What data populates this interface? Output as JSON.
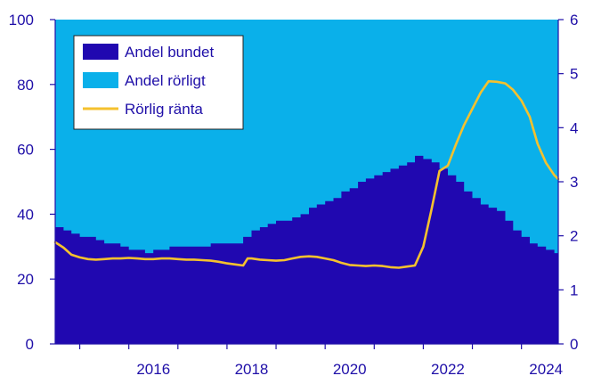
{
  "chart_data": {
    "type": "area",
    "title": "",
    "xlabel": "",
    "ylabel": "",
    "y2label": "",
    "xlim": [
      2014.5,
      2024.75
    ],
    "ylim": [
      0,
      100
    ],
    "y2lim": [
      0,
      6
    ],
    "x_ticks": [
      2016,
      2018,
      2020,
      2022,
      2024
    ],
    "y_ticks": [
      0,
      20,
      40,
      60,
      80,
      100
    ],
    "y2_ticks": [
      0,
      1,
      2,
      3,
      4,
      5,
      6
    ],
    "grid": false,
    "legend_position": "top-left",
    "colors": {
      "fixed": "#2008b0",
      "variable": "#0ab0ea",
      "rate": "#f5c12e",
      "axis": "#1f0fa8"
    },
    "legend": [
      {
        "label": "Andel bundet",
        "series": "fixed"
      },
      {
        "label": "Andel rörligt",
        "series": "variable"
      },
      {
        "label": "Rörlig ränta",
        "series": "rate"
      }
    ],
    "series": [
      {
        "key": "fixed",
        "name": "Andel bundet",
        "axis": "left",
        "points": [
          [
            2014.5,
            36
          ],
          [
            2014.67,
            35
          ],
          [
            2014.83,
            34
          ],
          [
            2015.0,
            33
          ],
          [
            2015.17,
            33
          ],
          [
            2015.33,
            32
          ],
          [
            2015.5,
            31
          ],
          [
            2015.67,
            31
          ],
          [
            2015.83,
            30
          ],
          [
            2016.0,
            29
          ],
          [
            2016.17,
            29
          ],
          [
            2016.33,
            28
          ],
          [
            2016.5,
            29
          ],
          [
            2016.67,
            29
          ],
          [
            2016.83,
            30
          ],
          [
            2017.0,
            30
          ],
          [
            2017.17,
            30
          ],
          [
            2017.33,
            30
          ],
          [
            2017.5,
            30
          ],
          [
            2017.67,
            31
          ],
          [
            2017.83,
            31
          ],
          [
            2018.0,
            31
          ],
          [
            2018.17,
            31
          ],
          [
            2018.33,
            33
          ],
          [
            2018.5,
            35
          ],
          [
            2018.67,
            36
          ],
          [
            2018.83,
            37
          ],
          [
            2019.0,
            38
          ],
          [
            2019.17,
            38
          ],
          [
            2019.33,
            39
          ],
          [
            2019.5,
            40
          ],
          [
            2019.67,
            42
          ],
          [
            2019.83,
            43
          ],
          [
            2020.0,
            44
          ],
          [
            2020.17,
            45
          ],
          [
            2020.33,
            47
          ],
          [
            2020.5,
            48
          ],
          [
            2020.67,
            50
          ],
          [
            2020.83,
            51
          ],
          [
            2021.0,
            52
          ],
          [
            2021.17,
            53
          ],
          [
            2021.33,
            54
          ],
          [
            2021.5,
            55
          ],
          [
            2021.67,
            56
          ],
          [
            2021.83,
            58
          ],
          [
            2022.0,
            57
          ],
          [
            2022.17,
            56
          ],
          [
            2022.33,
            54
          ],
          [
            2022.5,
            52
          ],
          [
            2022.67,
            50
          ],
          [
            2022.83,
            47
          ],
          [
            2023.0,
            45
          ],
          [
            2023.17,
            43
          ],
          [
            2023.33,
            42
          ],
          [
            2023.5,
            41
          ],
          [
            2023.67,
            38
          ],
          [
            2023.83,
            35
          ],
          [
            2024.0,
            33
          ],
          [
            2024.17,
            31
          ],
          [
            2024.33,
            30
          ],
          [
            2024.5,
            29
          ],
          [
            2024.67,
            28
          ],
          [
            2024.75,
            28
          ]
        ]
      },
      {
        "key": "variable",
        "name": "Andel rörligt",
        "axis": "left",
        "points": "complement-of-fixed-to-100"
      },
      {
        "key": "rate",
        "name": "Rörlig ränta",
        "axis": "right",
        "points": [
          [
            2014.5,
            1.88
          ],
          [
            2014.67,
            1.78
          ],
          [
            2014.83,
            1.65
          ],
          [
            2015.0,
            1.6
          ],
          [
            2015.17,
            1.57
          ],
          [
            2015.33,
            1.56
          ],
          [
            2015.5,
            1.57
          ],
          [
            2015.67,
            1.58
          ],
          [
            2015.83,
            1.58
          ],
          [
            2016.0,
            1.59
          ],
          [
            2016.17,
            1.58
          ],
          [
            2016.33,
            1.57
          ],
          [
            2016.5,
            1.57
          ],
          [
            2016.67,
            1.58
          ],
          [
            2016.83,
            1.58
          ],
          [
            2017.0,
            1.57
          ],
          [
            2017.17,
            1.56
          ],
          [
            2017.33,
            1.56
          ],
          [
            2017.5,
            1.55
          ],
          [
            2017.67,
            1.54
          ],
          [
            2017.83,
            1.52
          ],
          [
            2018.0,
            1.49
          ],
          [
            2018.17,
            1.47
          ],
          [
            2018.33,
            1.45
          ],
          [
            2018.42,
            1.58
          ],
          [
            2018.5,
            1.58
          ],
          [
            2018.67,
            1.56
          ],
          [
            2018.83,
            1.55
          ],
          [
            2019.0,
            1.54
          ],
          [
            2019.17,
            1.55
          ],
          [
            2019.33,
            1.58
          ],
          [
            2019.5,
            1.61
          ],
          [
            2019.67,
            1.62
          ],
          [
            2019.83,
            1.61
          ],
          [
            2020.0,
            1.58
          ],
          [
            2020.17,
            1.55
          ],
          [
            2020.33,
            1.5
          ],
          [
            2020.5,
            1.46
          ],
          [
            2020.67,
            1.45
          ],
          [
            2020.83,
            1.44
          ],
          [
            2021.0,
            1.45
          ],
          [
            2021.17,
            1.44
          ],
          [
            2021.33,
            1.42
          ],
          [
            2021.5,
            1.41
          ],
          [
            2021.67,
            1.43
          ],
          [
            2021.83,
            1.45
          ],
          [
            2022.0,
            1.8
          ],
          [
            2022.17,
            2.5
          ],
          [
            2022.33,
            3.2
          ],
          [
            2022.5,
            3.3
          ],
          [
            2022.67,
            3.7
          ],
          [
            2022.83,
            4.05
          ],
          [
            2023.0,
            4.35
          ],
          [
            2023.17,
            4.65
          ],
          [
            2023.33,
            4.86
          ],
          [
            2023.5,
            4.85
          ],
          [
            2023.67,
            4.82
          ],
          [
            2023.83,
            4.7
          ],
          [
            2024.0,
            4.5
          ],
          [
            2024.17,
            4.2
          ],
          [
            2024.33,
            3.7
          ],
          [
            2024.5,
            3.35
          ],
          [
            2024.67,
            3.12
          ],
          [
            2024.75,
            3.05
          ]
        ]
      }
    ]
  }
}
